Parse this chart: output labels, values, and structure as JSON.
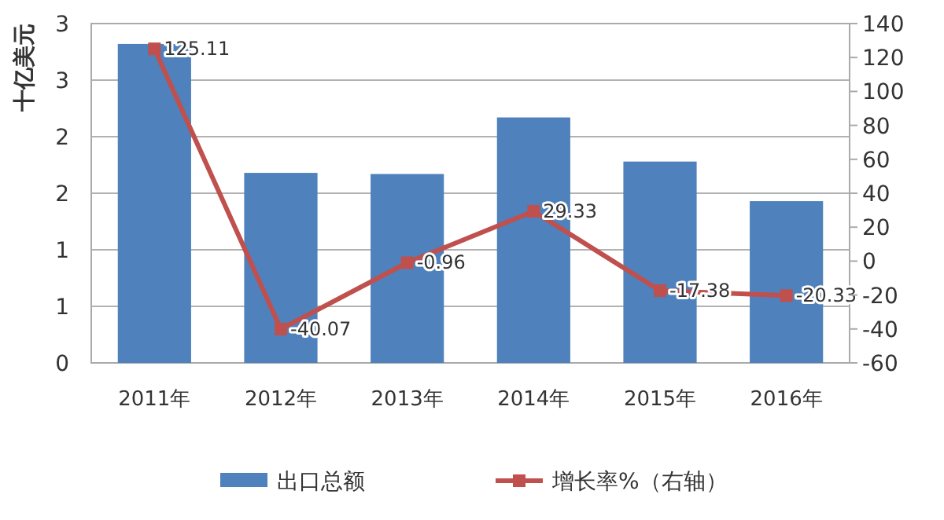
{
  "chart_data": {
    "type": "bar",
    "ylabel": "十亿美元",
    "categories": [
      "2011年",
      "2012年",
      "2013年",
      "2014年",
      "2015年",
      "2016年"
    ],
    "series": [
      {
        "name": "出口总额",
        "color": "#4f81bd",
        "values": [
          2.82,
          1.68,
          1.67,
          2.17,
          1.78,
          1.43
        ]
      },
      {
        "name": "增长率%（右轴）",
        "type": "line",
        "axis": "y2",
        "color": "#c0504d",
        "values": [
          125.11,
          -40.07,
          -0.96,
          29.33,
          -17.38,
          -20.33
        ],
        "marker": "square",
        "data_labels": true
      }
    ],
    "ylim": [
      0,
      3
    ],
    "yticks": [
      0,
      {
        "value": 0.5,
        "label": "1"
      },
      1,
      {
        "value": 1.5,
        "label": "2"
      },
      2,
      {
        "value": 2.5,
        "label": "3"
      },
      3
    ],
    "y2lim": [
      -60,
      140
    ],
    "y2ticks": [
      -60,
      -40,
      -20,
      0,
      20,
      40,
      60,
      80,
      100,
      120,
      140
    ],
    "grid": "y",
    "legend": "bottom"
  }
}
